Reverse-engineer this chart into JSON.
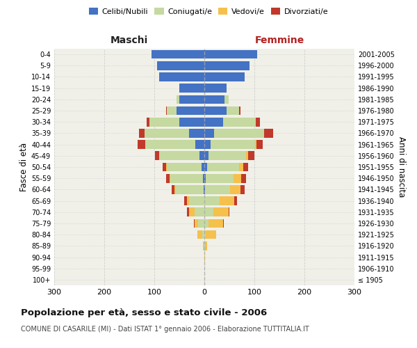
{
  "age_groups": [
    "100+",
    "95-99",
    "90-94",
    "85-89",
    "80-84",
    "75-79",
    "70-74",
    "65-69",
    "60-64",
    "55-59",
    "50-54",
    "45-49",
    "40-44",
    "35-39",
    "30-34",
    "25-29",
    "20-24",
    "15-19",
    "10-14",
    "5-9",
    "0-4"
  ],
  "birth_years": [
    "≤ 1905",
    "1906-1910",
    "1911-1915",
    "1916-1920",
    "1921-1925",
    "1926-1930",
    "1931-1935",
    "1936-1940",
    "1941-1945",
    "1946-1950",
    "1951-1955",
    "1956-1960",
    "1961-1965",
    "1966-1970",
    "1971-1975",
    "1976-1980",
    "1981-1985",
    "1986-1990",
    "1991-1995",
    "1996-2000",
    "2001-2005"
  ],
  "male_celibi": [
    0,
    0,
    0,
    0,
    0,
    0,
    0,
    0,
    2,
    3,
    5,
    10,
    18,
    30,
    50,
    55,
    50,
    50,
    90,
    95,
    105
  ],
  "male_coniugati": [
    0,
    0,
    0,
    1,
    4,
    12,
    20,
    30,
    55,
    65,
    70,
    80,
    100,
    90,
    60,
    20,
    5,
    0,
    0,
    0,
    0
  ],
  "male_vedovi": [
    0,
    0,
    0,
    2,
    10,
    8,
    10,
    5,
    3,
    2,
    1,
    0,
    0,
    0,
    0,
    0,
    0,
    0,
    0,
    0,
    0
  ],
  "male_divorziati": [
    0,
    0,
    0,
    0,
    0,
    1,
    5,
    5,
    5,
    7,
    7,
    8,
    15,
    10,
    5,
    2,
    0,
    0,
    0,
    0,
    0
  ],
  "female_nubili": [
    0,
    0,
    0,
    0,
    0,
    0,
    0,
    0,
    2,
    3,
    5,
    8,
    12,
    20,
    38,
    45,
    40,
    45,
    80,
    90,
    105
  ],
  "female_coniugate": [
    0,
    0,
    0,
    1,
    3,
    8,
    18,
    30,
    50,
    55,
    65,
    75,
    90,
    100,
    65,
    25,
    8,
    0,
    0,
    0,
    0
  ],
  "female_vedove": [
    0,
    0,
    1,
    5,
    20,
    30,
    30,
    30,
    20,
    15,
    8,
    5,
    2,
    0,
    0,
    0,
    0,
    0,
    0,
    0,
    0
  ],
  "female_divorziate": [
    0,
    0,
    0,
    0,
    0,
    1,
    2,
    5,
    8,
    10,
    10,
    12,
    12,
    18,
    8,
    2,
    0,
    0,
    0,
    0,
    0
  ],
  "color_celibi": "#4472c4",
  "color_coniugati": "#c5d9a0",
  "color_vedovi": "#f5c04c",
  "color_divorziati": "#c0392b",
  "xlim": 300,
  "title": "Popolazione per età, sesso e stato civile - 2006",
  "subtitle": "COMUNE DI CASARILE (MI) - Dati ISTAT 1° gennaio 2006 - Elaborazione TUTTITALIA.IT",
  "ylabel_left": "Fasce di età",
  "ylabel_right": "Anni di nascita",
  "xlabel_left": "Maschi",
  "xlabel_right": "Femmine",
  "background_color": "#ffffff",
  "plot_bg_color": "#f0f0e8",
  "grid_color": "#cccccc"
}
